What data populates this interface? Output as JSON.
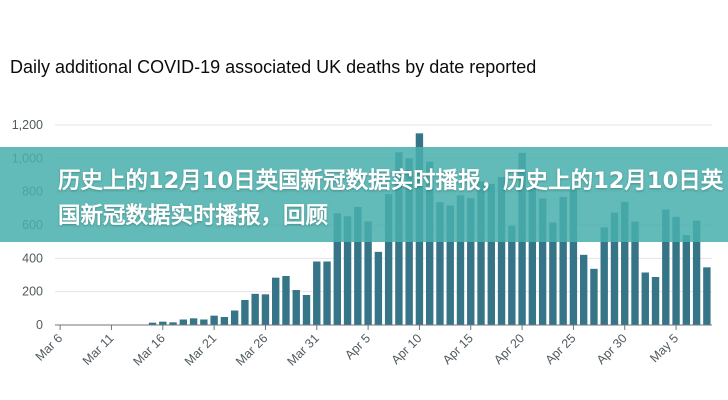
{
  "title": "Daily additional COVID-19 associated UK deaths by date reported",
  "banner": {
    "text": "历史上的12月10日英国新冠数据实时播报，历史上的12月10日英国新冠数据实时播报，回顾"
  },
  "colors": {
    "bar": "#367588",
    "axis": "#6f777b",
    "grid": "#e4e4e4",
    "text": "#505a5f",
    "banner": "#48b0ac"
  },
  "chart_data": {
    "type": "bar",
    "title": "Daily additional COVID-19 associated UK deaths by date reported",
    "xlabel": "",
    "ylabel": "",
    "ylim": [
      0,
      1200
    ],
    "yticks": [
      0,
      200,
      400,
      600,
      800,
      1000,
      1200
    ],
    "ytick_labels": [
      "0",
      "200",
      "400",
      "600",
      "800",
      "1,000",
      "1,200"
    ],
    "xtick_labels": [
      "Mar 6",
      "Mar 11",
      "Mar 16",
      "Mar 21",
      "Mar 26",
      "Mar 31",
      "Apr 5",
      "Apr 10",
      "Apr 15",
      "Apr 20",
      "Apr 25",
      "Apr 30",
      "May 5"
    ],
    "categories": [
      "Mar 6",
      "Mar 7",
      "Mar 8",
      "Mar 9",
      "Mar 10",
      "Mar 11",
      "Mar 12",
      "Mar 13",
      "Mar 14",
      "Mar 15",
      "Mar 16",
      "Mar 17",
      "Mar 18",
      "Mar 19",
      "Mar 20",
      "Mar 21",
      "Mar 22",
      "Mar 23",
      "Mar 24",
      "Mar 25",
      "Mar 26",
      "Mar 27",
      "Mar 28",
      "Mar 29",
      "Mar 30",
      "Mar 31",
      "Apr 1",
      "Apr 2",
      "Apr 3",
      "Apr 4",
      "Apr 5",
      "Apr 6",
      "Apr 7",
      "Apr 8",
      "Apr 9",
      "Apr 10",
      "Apr 11",
      "Apr 12",
      "Apr 13",
      "Apr 14",
      "Apr 15",
      "Apr 16",
      "Apr 17",
      "Apr 18",
      "Apr 19",
      "Apr 20",
      "Apr 21",
      "Apr 22",
      "Apr 23",
      "Apr 24",
      "Apr 25",
      "Apr 26",
      "Apr 27",
      "Apr 28",
      "Apr 29",
      "Apr 30",
      "May 1",
      "May 2",
      "May 3",
      "May 4",
      "May 5",
      "May 6",
      "May 7",
      "May 8"
    ],
    "values": [
      1,
      0,
      0,
      2,
      1,
      1,
      2,
      1,
      1,
      14,
      20,
      16,
      33,
      40,
      33,
      56,
      48,
      87,
      150,
      187,
      184,
      284,
      294,
      210,
      180,
      381,
      381,
      670,
      652,
      708,
      621,
      439,
      786,
      1036,
      1000,
      1150,
      980,
      737,
      717,
      778,
      761,
      861,
      847,
      888,
      596,
      1033,
      824,
      759,
      615,
      768,
      813,
      421,
      337,
      586,
      674,
      739,
      621,
      315,
      288,
      693,
      649,
      539,
      626,
      346
    ]
  }
}
